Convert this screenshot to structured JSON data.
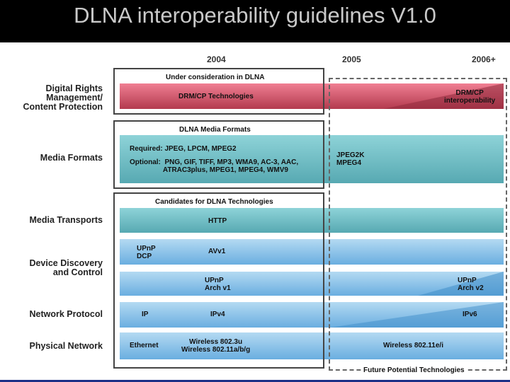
{
  "title": "DLNA interoperability guidelines V1.0",
  "years": [
    "2004",
    "2005",
    "2006+"
  ],
  "row_labels": {
    "drm": "Digital Rights\nManagement/\nContent Protection",
    "media_formats": "Media Formats",
    "media_transports": "Media Transports",
    "device_discovery": "Device Discovery\nand Control",
    "network_protocol": "Network Protocol",
    "physical_network": "Physical Network"
  },
  "box_titles": {
    "under_consideration": "Under consideration in DLNA",
    "media_formats": "DLNA Media Formats",
    "candidates": "Candidates for DLNA Technologies",
    "future": "Future Potential Technologies"
  },
  "drm": {
    "current": "DRM/CP Technologies",
    "future": "DRM/CP\ninteroperability"
  },
  "media_formats": {
    "required": "Required:  JPEG, LPCM, MPEG2",
    "optional": "Optional:  PNG, GIF, TIFF, MP3, WMA9, AC-3, AAC,\n                 ATRAC3plus, MPEG1, MPEG4, WMV9",
    "future": "JPEG2K\nMPEG4"
  },
  "transports": {
    "current": "HTTP"
  },
  "device": {
    "upnp_dcp": "UPnP\nDCP",
    "av": "AVv1",
    "upnp_arch": "UPnP\nArch v1",
    "upnp_arch_v2": "UPnP\nArch v2"
  },
  "network": {
    "ip": "IP",
    "ipv4": "IPv4",
    "ipv6": "IPv6"
  },
  "physical": {
    "ethernet": "Ethernet",
    "wireless": "Wireless 802.3u\nWireless 802.11a/b/g",
    "future": "Wireless 802.11e/i"
  },
  "colors": {
    "drm": "#c9465b",
    "teal": "#6ab9c1",
    "blue": "#8cc4ea",
    "box_border": "#444444"
  }
}
